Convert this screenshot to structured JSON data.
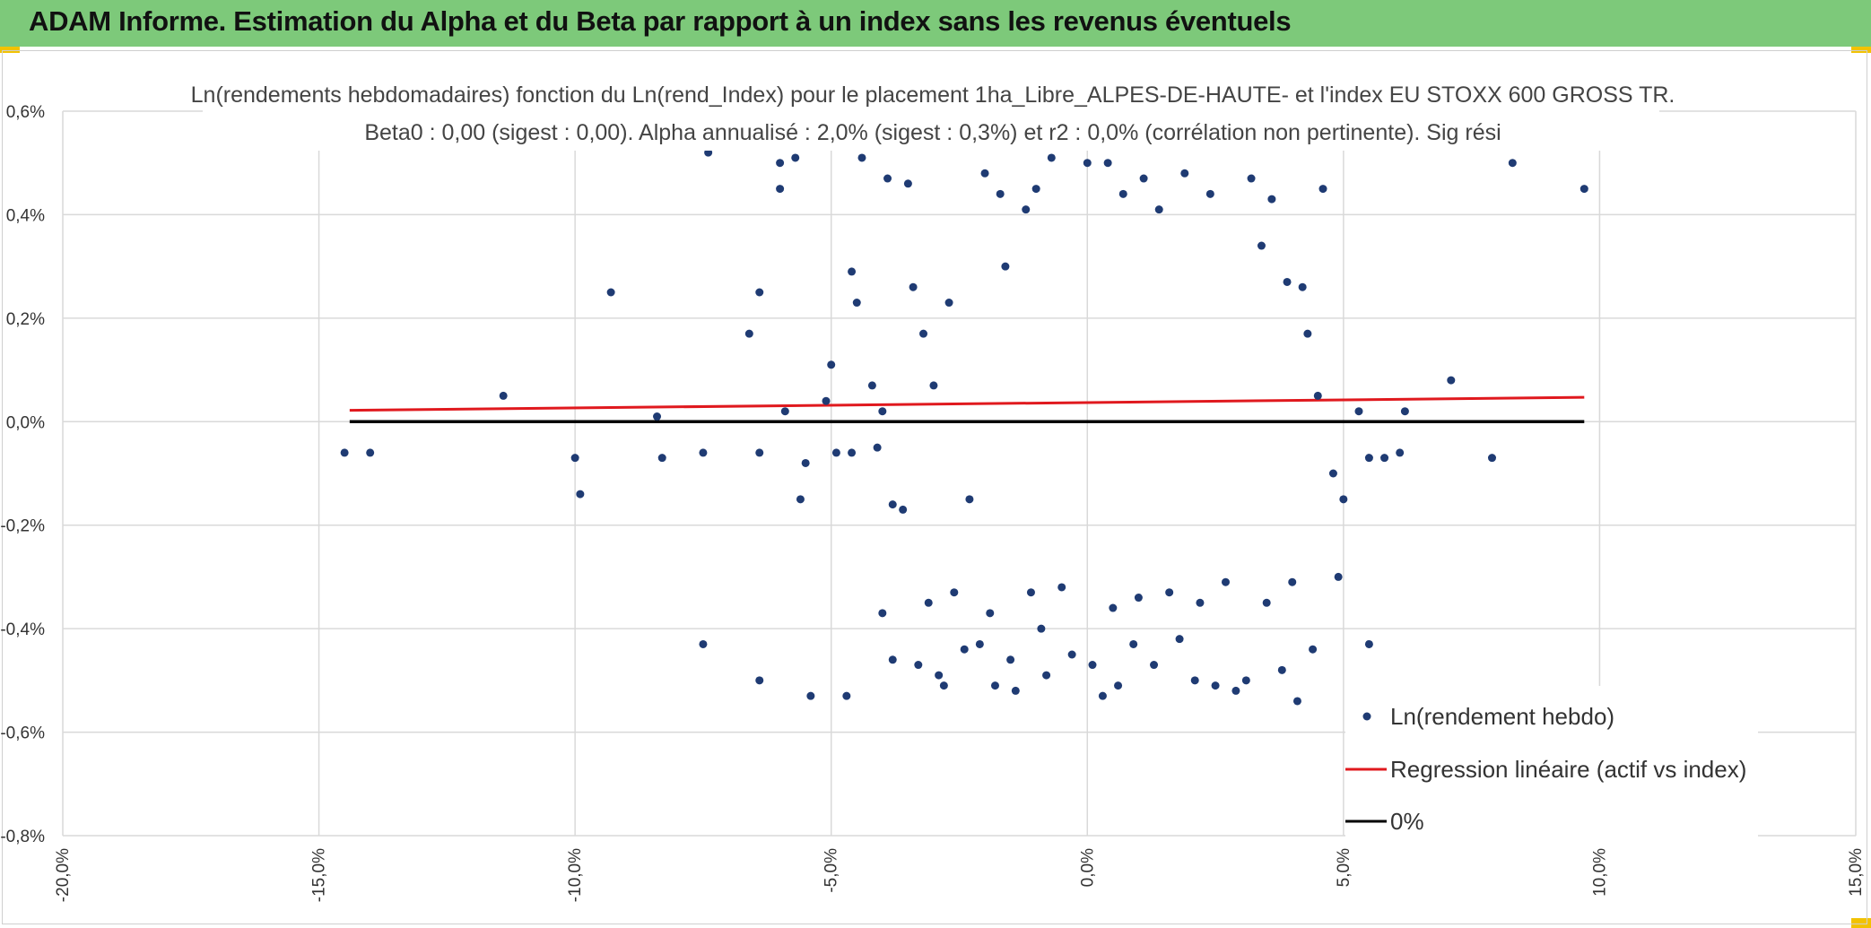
{
  "banner": {
    "title": "ADAM Informe. Estimation du Alpha et du Beta par rapport à un index sans les revenus éventuels"
  },
  "colors": {
    "banner": "#7dc97a",
    "accent_corner": "#f2c200",
    "points": "#1f3b73",
    "regression": "#e0191e",
    "zero_line": "#000000"
  },
  "chart_data": {
    "type": "scatter",
    "title": "Ln(rendements hebdomadaires) fonction du Ln(rend_Index) pour le placement 1ha_Libre_ALPES-DE-HAUTE- et l'index EU STOXX 600 GROSS TR.",
    "subtitle": "Beta0 : 0,00 (sigest : 0,00). Alpha annualisé : 2,0% (sigest : 0,3%) et r2 : 0,0% (corrélation non pertinente). Sig rési",
    "xlim": [
      -0.2,
      0.15
    ],
    "ylim": [
      -0.008,
      0.006
    ],
    "x_ticks": [
      -0.2,
      -0.15,
      -0.1,
      -0.05,
      0.0,
      0.05,
      0.1,
      0.15
    ],
    "x_tick_labels": [
      "-20,0%",
      "-15,0%",
      "-10,0%",
      "-5,0%",
      "0,0%",
      "5,0%",
      "10,0%",
      "15,0%"
    ],
    "y_ticks": [
      0.006,
      0.004,
      0.002,
      0.0,
      -0.002,
      -0.004,
      -0.006,
      -0.008
    ],
    "y_tick_labels": [
      "0,6%",
      "0,4%",
      "0,2%",
      "0,0%",
      "-0,2%",
      "-0,4%",
      "-0,6%",
      "-0,8%"
    ],
    "grid": true,
    "legend_position": "bottom-right",
    "series": [
      {
        "name": "Ln(rendement hebdo)",
        "kind": "points",
        "points": [
          [
            -0.145,
            -0.0006
          ],
          [
            -0.14,
            -0.0006
          ],
          [
            -0.114,
            0.0005
          ],
          [
            -0.093,
            0.0025
          ],
          [
            -0.1,
            -0.0007
          ],
          [
            -0.099,
            -0.0014
          ],
          [
            -0.084,
            0.0001
          ],
          [
            -0.083,
            -0.0007
          ],
          [
            -0.075,
            -0.0043
          ],
          [
            -0.074,
            0.0052
          ],
          [
            -0.075,
            -0.0006
          ],
          [
            -0.066,
            0.0017
          ],
          [
            -0.064,
            0.0025
          ],
          [
            -0.064,
            -0.005
          ],
          [
            -0.064,
            -0.0006
          ],
          [
            -0.06,
            0.005
          ],
          [
            -0.06,
            0.0045
          ],
          [
            -0.059,
            0.0002
          ],
          [
            -0.057,
            0.0051
          ],
          [
            -0.056,
            -0.0015
          ],
          [
            -0.055,
            -0.0008
          ],
          [
            -0.054,
            -0.0053
          ],
          [
            -0.051,
            0.0004
          ],
          [
            -0.05,
            0.0011
          ],
          [
            -0.049,
            -0.0006
          ],
          [
            -0.047,
            -0.0053
          ],
          [
            -0.046,
            0.0029
          ],
          [
            -0.046,
            -0.0006
          ],
          [
            -0.045,
            0.0023
          ],
          [
            -0.044,
            0.0051
          ],
          [
            -0.042,
            0.0007
          ],
          [
            -0.041,
            -0.0005
          ],
          [
            -0.04,
            -0.0037
          ],
          [
            -0.04,
            0.0002
          ],
          [
            -0.039,
            0.0047
          ],
          [
            -0.038,
            -0.0046
          ],
          [
            -0.038,
            -0.0016
          ],
          [
            -0.036,
            -0.0017
          ],
          [
            -0.035,
            0.0046
          ],
          [
            -0.034,
            0.0026
          ],
          [
            -0.033,
            -0.0047
          ],
          [
            -0.032,
            0.0017
          ],
          [
            -0.031,
            -0.0035
          ],
          [
            -0.03,
            0.0007
          ],
          [
            -0.029,
            -0.0049
          ],
          [
            -0.028,
            -0.0051
          ],
          [
            -0.027,
            0.0023
          ],
          [
            -0.026,
            -0.0033
          ],
          [
            -0.024,
            -0.0044
          ],
          [
            -0.023,
            -0.0015
          ],
          [
            -0.021,
            -0.0043
          ],
          [
            -0.02,
            0.0048
          ],
          [
            -0.019,
            -0.0037
          ],
          [
            -0.018,
            -0.0051
          ],
          [
            -0.017,
            0.0044
          ],
          [
            -0.016,
            0.003
          ],
          [
            -0.015,
            -0.0046
          ],
          [
            -0.014,
            -0.0052
          ],
          [
            -0.012,
            0.0041
          ],
          [
            -0.011,
            -0.0033
          ],
          [
            -0.01,
            0.0045
          ],
          [
            -0.009,
            -0.004
          ],
          [
            -0.008,
            -0.0049
          ],
          [
            -0.007,
            0.0051
          ],
          [
            -0.005,
            -0.0032
          ],
          [
            -0.003,
            -0.0045
          ],
          [
            0.0,
            0.005
          ],
          [
            0.001,
            -0.0047
          ],
          [
            0.003,
            -0.0053
          ],
          [
            0.004,
            0.005
          ],
          [
            0.005,
            -0.0036
          ],
          [
            0.006,
            -0.0051
          ],
          [
            0.007,
            0.0044
          ],
          [
            0.009,
            -0.0043
          ],
          [
            0.01,
            -0.0034
          ],
          [
            0.011,
            0.0047
          ],
          [
            0.013,
            -0.0047
          ],
          [
            0.014,
            0.0041
          ],
          [
            0.016,
            -0.0033
          ],
          [
            0.018,
            -0.0042
          ],
          [
            0.019,
            0.0048
          ],
          [
            0.021,
            -0.005
          ],
          [
            0.022,
            -0.0035
          ],
          [
            0.024,
            0.0044
          ],
          [
            0.025,
            -0.0051
          ],
          [
            0.027,
            -0.0031
          ],
          [
            0.029,
            -0.0052
          ],
          [
            0.031,
            -0.005
          ],
          [
            0.032,
            0.0047
          ],
          [
            0.034,
            0.0034
          ],
          [
            0.035,
            -0.0035
          ],
          [
            0.036,
            0.0043
          ],
          [
            0.038,
            -0.0048
          ],
          [
            0.039,
            0.0027
          ],
          [
            0.04,
            -0.0031
          ],
          [
            0.041,
            -0.0054
          ],
          [
            0.042,
            0.0026
          ],
          [
            0.043,
            0.0017
          ],
          [
            0.044,
            -0.0044
          ],
          [
            0.045,
            0.0005
          ],
          [
            0.046,
            0.0045
          ],
          [
            0.048,
            -0.001
          ],
          [
            0.049,
            -0.003
          ],
          [
            0.05,
            -0.0015
          ],
          [
            0.053,
            0.0002
          ],
          [
            0.055,
            -0.0043
          ],
          [
            0.055,
            -0.0007
          ],
          [
            0.058,
            -0.0007
          ],
          [
            0.061,
            -0.0006
          ],
          [
            0.062,
            0.0002
          ],
          [
            0.071,
            0.0008
          ],
          [
            0.079,
            -0.0007
          ],
          [
            0.083,
            0.005
          ],
          [
            0.097,
            0.0045
          ]
        ]
      },
      {
        "name": "Regression linéaire (actif vs index)",
        "kind": "line",
        "points": [
          [
            -0.144,
            0.00022
          ],
          [
            0.097,
            0.00047
          ]
        ]
      },
      {
        "name": "0%",
        "kind": "line",
        "points": [
          [
            -0.144,
            0.0
          ],
          [
            0.097,
            0.0
          ]
        ]
      }
    ]
  }
}
